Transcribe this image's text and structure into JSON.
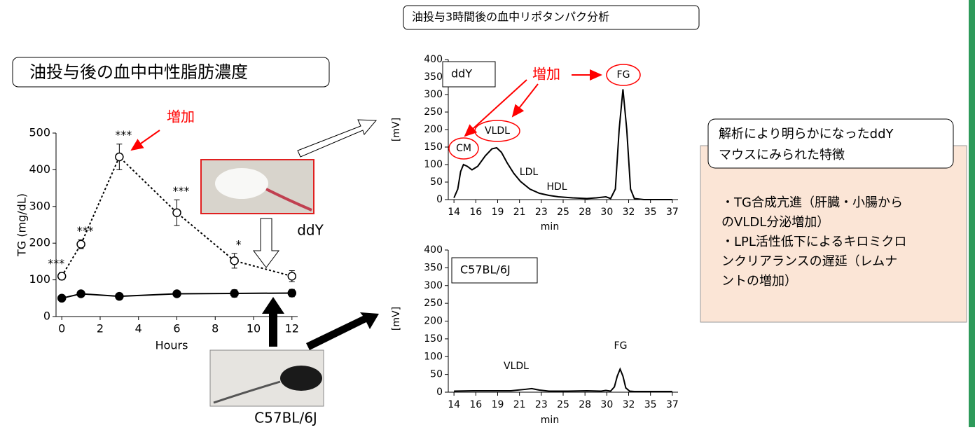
{
  "slide": {
    "left_title": "油投与後の血中中性脂肪濃度",
    "top_title": "油投与3時間後の血中リポタンパク分析",
    "findings": {
      "title": [
        "解析により明らかになったddY",
        "マウスにみられた特徴"
      ],
      "items": [
        "・TG合成亢進（肝臓・小腸から",
        "のVLDL分泌増加）",
        "・LPL活性低下によるキロミクロ",
        "ンクリアランスの遅延（レムナ",
        "ントの増加）"
      ]
    },
    "photos": [
      "ddY",
      "C57BL/6J"
    ]
  },
  "chart_data": [
    {
      "type": "line",
      "ylabel": "TG (mg/dL)",
      "xlabel": "Hours",
      "x": [
        0,
        1,
        3,
        6,
        9,
        12
      ],
      "xlim": [
        -0.3,
        12.3
      ],
      "xticks": [
        0,
        2,
        4,
        6,
        8,
        10,
        12
      ],
      "ylim": [
        0,
        500
      ],
      "yticks": [
        0,
        100,
        200,
        300,
        400,
        500
      ],
      "series": [
        {
          "color": "#000000",
          "marker": "open",
          "dashed": true,
          "values": [
            110,
            197,
            435,
            283,
            152,
            110
          ],
          "errors": [
            10,
            12,
            35,
            35,
            20,
            15
          ],
          "significance": [
            "***",
            "***",
            "***",
            "***",
            "*",
            null
          ]
        },
        {
          "color": "#000000",
          "marker": "filled",
          "dashed": false,
          "values": [
            50,
            62,
            55,
            62,
            63,
            64
          ],
          "errors": [
            5,
            5,
            5,
            8,
            10,
            10
          ]
        }
      ],
      "annotation": "増加",
      "annotation_color": "#ff0000"
    },
    {
      "type": "line",
      "ylabel": "[mV]",
      "xlabel": "min",
      "sample": "ddY",
      "xlim": [
        13.4,
        37.6
      ],
      "xticks": [
        14,
        {
          "value": 16.3,
          "label": "16"
        },
        {
          "value": 18.6,
          "label": "19"
        },
        {
          "value": 20.9,
          "label": "21"
        },
        {
          "value": 23.2,
          "label": "23"
        },
        {
          "value": 25.5,
          "label": "25"
        },
        {
          "value": 27.8,
          "label": "28"
        },
        {
          "value": 30.1,
          "label": "30"
        },
        {
          "value": 32.4,
          "label": "32"
        },
        {
          "value": 34.7,
          "label": "35"
        },
        37
      ],
      "ylim": [
        0,
        400
      ],
      "yticks": [
        0,
        50,
        100,
        150,
        200,
        250,
        300,
        350,
        400
      ],
      "x": [
        14.0,
        14.4,
        14.7,
        15.0,
        15.4,
        15.9,
        16.5,
        17.3,
        18.0,
        18.5,
        19.0,
        19.6,
        20.3,
        21.0,
        22.0,
        23.0,
        24.0,
        25.0,
        26.5,
        28.0,
        29.0,
        30.0,
        30.5,
        31.0,
        31.4,
        31.8,
        32.2,
        32.6,
        33.0,
        34.0,
        35.0,
        37.0
      ],
      "series": [
        {
          "color": "#000000",
          "values": [
            5,
            30,
            80,
            100,
            95,
            85,
            95,
            125,
            145,
            148,
            135,
            105,
            75,
            52,
            30,
            18,
            12,
            8,
            5,
            3,
            5,
            8,
            3,
            30,
            200,
            315,
            200,
            30,
            3,
            0,
            0,
            0
          ]
        }
      ],
      "circled_labels": [
        "CM",
        "VLDL",
        "FG"
      ],
      "labels": [
        "LDL",
        "HDL"
      ],
      "annotation": "増加",
      "annotation_color": "#ff0000"
    },
    {
      "type": "line",
      "ylabel": "[mV]",
      "xlabel": "min",
      "sample": "C57BL/6J",
      "xlim": [
        13.4,
        37.6
      ],
      "xticks": [
        14,
        {
          "value": 16.3,
          "label": "16"
        },
        {
          "value": 18.6,
          "label": "19"
        },
        {
          "value": 20.9,
          "label": "21"
        },
        {
          "value": 23.2,
          "label": "23"
        },
        {
          "value": 25.5,
          "label": "25"
        },
        {
          "value": 27.8,
          "label": "28"
        },
        {
          "value": 30.1,
          "label": "30"
        },
        {
          "value": 32.4,
          "label": "32"
        },
        {
          "value": 34.7,
          "label": "35"
        },
        37
      ],
      "ylim": [
        0,
        400
      ],
      "yticks": [
        0,
        50,
        100,
        150,
        200,
        250,
        300,
        350,
        400
      ],
      "x": [
        14.0,
        16.0,
        18.0,
        20.0,
        21.5,
        22.2,
        23.0,
        24.0,
        26.0,
        28.0,
        29.5,
        30.0,
        30.5,
        30.9,
        31.2,
        31.5,
        31.8,
        32.1,
        32.5,
        33.0,
        35.0,
        37.0
      ],
      "series": [
        {
          "color": "#000000",
          "values": [
            3,
            4,
            4,
            4,
            8,
            10,
            6,
            3,
            3,
            4,
            3,
            5,
            3,
            15,
            45,
            65,
            45,
            12,
            3,
            2,
            2,
            2
          ]
        }
      ],
      "labels": [
        "VLDL",
        "FG"
      ]
    }
  ]
}
